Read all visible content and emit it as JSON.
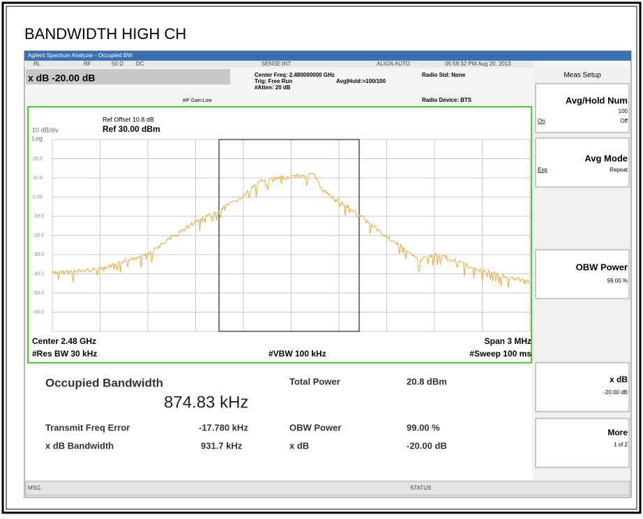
{
  "header": {
    "title": "BANDWIDTH HIGH CH"
  },
  "window": {
    "title": "Agilent Spectrum Analyzer - Occupied BW"
  },
  "status": {
    "rl": "RL",
    "rf": "RF",
    "imp": "50 Ω",
    "dc": "DC",
    "sense": "SENSE:INT",
    "align": "ALIGN AUTO",
    "time": "05:59:32 PM Aug 20, 2013"
  },
  "settings": {
    "xdb": "x dB -20.00 dB",
    "center_freq": "Center Freq: 2.480000000 GHz",
    "trig": "Trig: Free Run",
    "avg_hold": "Avg|Hold:>100/100",
    "atten": "#Atten: 20 dB",
    "if_gain": "#IF Gain:Low",
    "radio_std": "Radio Std: None",
    "radio_device": "Radio Device: BTS"
  },
  "graph": {
    "ref_offset": "Ref Offset 10.8 dB",
    "scale": "10 dB/div",
    "ref": "Ref 30.00 dBm",
    "log": "Log",
    "y_labels": [
      "20.0",
      "10.0",
      "0.00",
      "-10.0",
      "-20.0",
      "-30.0",
      "-40.0",
      "-50.0",
      "-60.0"
    ],
    "center": "Center 2.48 GHz",
    "span": "Span 3 MHz",
    "res_bw": "#Res BW 30 kHz",
    "vbw": "#VBW 100 kHz",
    "sweep": "#Sweep 100 ms"
  },
  "results": {
    "occupied_label": "Occupied Bandwidth",
    "occupied_value": "874.83 kHz",
    "total_power_label": "Total Power",
    "total_power": "20.8 dBm",
    "tfe_label": "Transmit Freq Error",
    "tfe": "-17.780 kHz",
    "obw_label": "OBW Power",
    "obw": "99.00 %",
    "xdbbw_label": "x dB Bandwidth",
    "xdbbw": "931.7 kHz",
    "xdb_label": "x dB",
    "xdb": "-20.00 dB"
  },
  "softkeys": {
    "menu": "Meas Setup",
    "avg_hold_num": "Avg/Hold Num",
    "avg_hold_value": "100",
    "on": "On",
    "off": "Off",
    "avg_mode": "Avg Mode",
    "exp": "Exp",
    "repeat": "Repeat",
    "obw_power": "OBW Power",
    "obw_value": "99.00 %",
    "xdb": "x dB",
    "xdb_value": "-20.00 dB",
    "more": "More",
    "more_page": "1 of 2"
  },
  "statusbar": {
    "msg": "MSG",
    "status": "STATUS"
  }
}
